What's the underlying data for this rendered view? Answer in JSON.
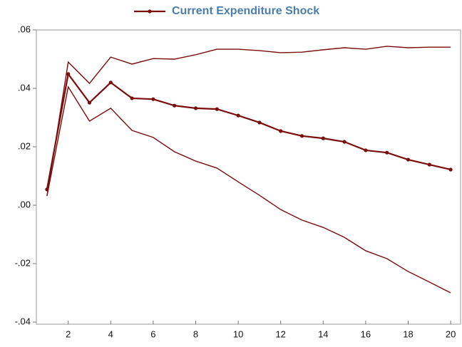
{
  "chart_data": {
    "type": "line",
    "x": [
      1,
      2,
      3,
      4,
      5,
      6,
      7,
      8,
      9,
      10,
      11,
      12,
      13,
      14,
      15,
      16,
      17,
      18,
      19,
      20
    ],
    "series": [
      {
        "name": "Current Expenditure Shock",
        "color": "#7b0c0c",
        "marker": true,
        "values": [
          0.0054,
          0.0449,
          0.0351,
          0.042,
          0.0366,
          0.0363,
          0.0341,
          0.0332,
          0.0329,
          0.0307,
          0.0283,
          0.0254,
          0.0237,
          0.0229,
          0.0217,
          0.0188,
          0.018,
          0.0156,
          0.0139,
          0.0122
        ]
      },
      {
        "color": "#7b0c0c",
        "marker": false,
        "values": [
          0.0032,
          0.049,
          0.0417,
          0.0507,
          0.0483,
          0.0502,
          0.05,
          0.0515,
          0.0534,
          0.0534,
          0.0529,
          0.0522,
          0.0524,
          0.0532,
          0.0539,
          0.0534,
          0.0544,
          0.0539,
          0.0541,
          0.0541
        ]
      },
      {
        "color": "#7b0c0c",
        "marker": false,
        "values": [
          0.0032,
          0.0405,
          0.0288,
          0.0332,
          0.0256,
          0.0232,
          0.0183,
          0.0151,
          0.0127,
          0.008,
          0.0034,
          -0.0015,
          -0.0051,
          -0.0076,
          -0.011,
          -0.0156,
          -0.0183,
          -0.0227,
          -0.0263,
          -0.03
        ]
      }
    ],
    "xlim": [
      0.5,
      20.5
    ],
    "xticks": [
      2,
      4,
      6,
      8,
      10,
      12,
      14,
      16,
      18,
      20
    ],
    "ylim": [
      -0.04,
      0.06
    ],
    "yticks": [
      {
        "value": -0.04,
        "label": "-.04"
      },
      {
        "value": -0.02,
        "label": "-.02"
      },
      {
        "value": 0,
        "label": ".00"
      },
      {
        "value": 0.02,
        "label": ".02"
      },
      {
        "value": 0.04,
        "label": ".04"
      },
      {
        "value": 0.06,
        "label": ".06"
      }
    ],
    "grid": false,
    "legend": "top",
    "legend_color": "#4a7eab"
  }
}
